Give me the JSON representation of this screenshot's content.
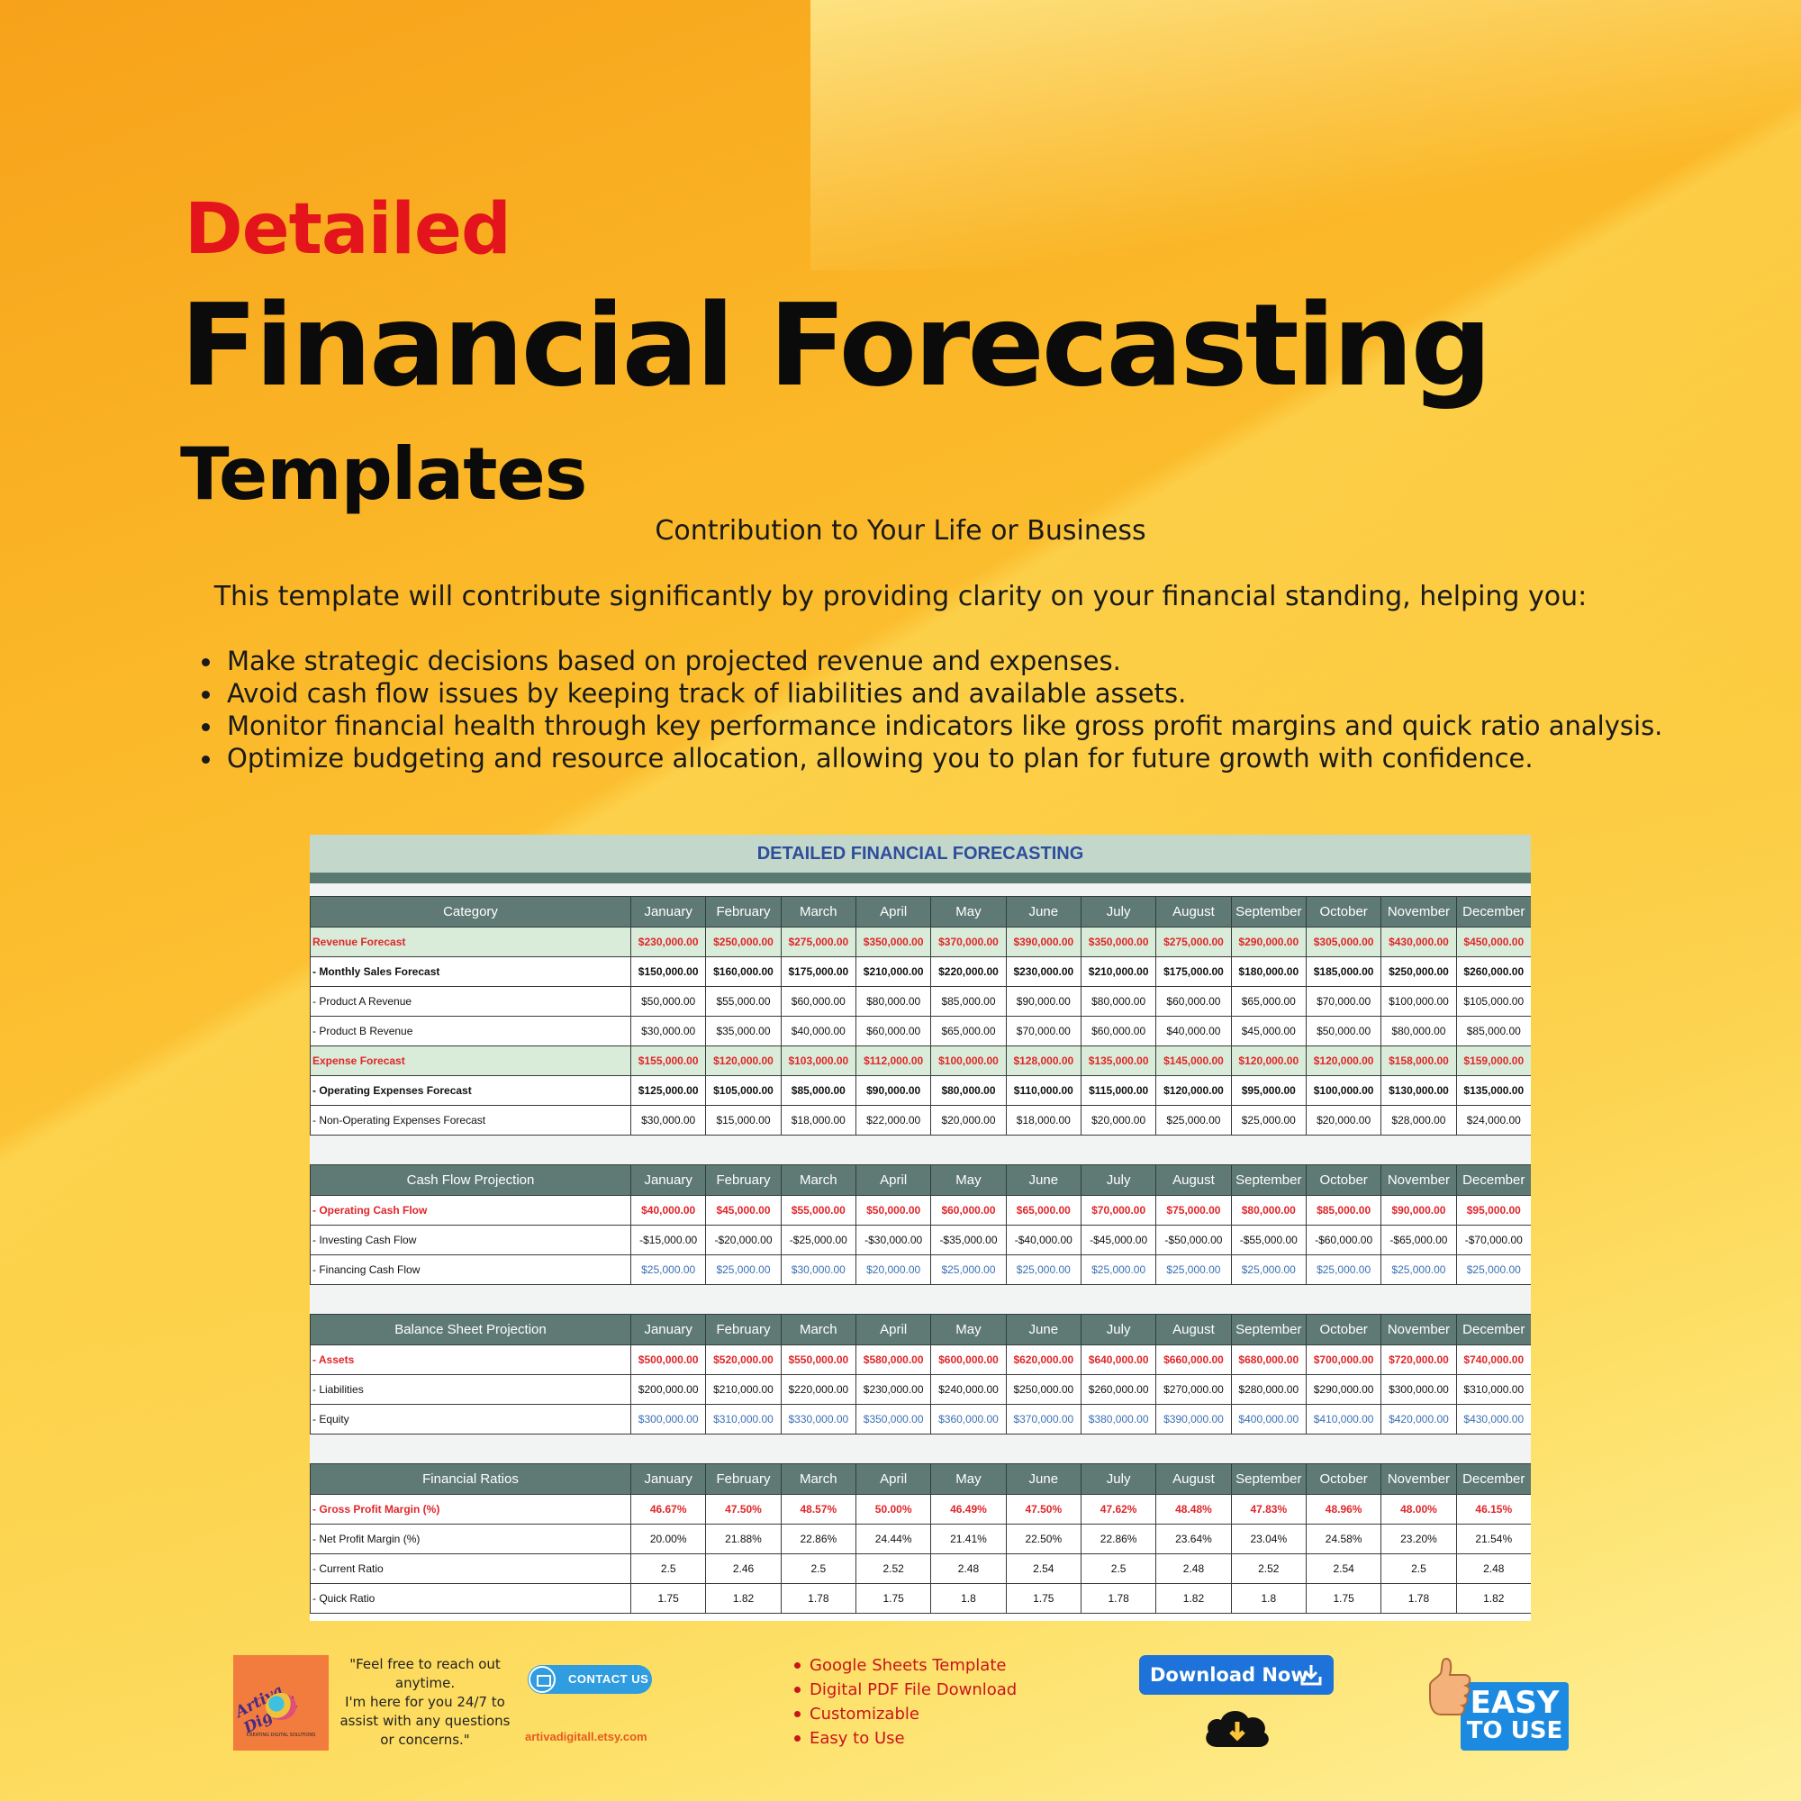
{
  "header": {
    "detailed": "Detailed",
    "title": "Financial Forecasting",
    "subtitle": "Templates",
    "contribution": "Contribution to Your Life or Business",
    "intro": "This template will contribute significantly by providing clarity on your financial standing, helping you:",
    "bullets": [
      "Make strategic decisions based on projected revenue and expenses.",
      "Avoid cash flow issues by keeping track of liabilities and available assets.",
      "Monitor financial health through key performance indicators like gross profit margins and quick ratio analysis.",
      "Optimize budgeting and resource allocation, allowing you to plan for future growth with confidence."
    ]
  },
  "sheet": {
    "title": "DETAILED FINANCIAL FORECASTING",
    "months": [
      "January",
      "February",
      "March",
      "April",
      "May",
      "June",
      "July",
      "August",
      "September",
      "October",
      "November",
      "December"
    ],
    "sections": [
      {
        "header": "Category",
        "rows": [
          {
            "style": "hl",
            "label": "Revenue Forecast",
            "values": [
              "$230,000.00",
              "$250,000.00",
              "$275,000.00",
              "$350,000.00",
              "$370,000.00",
              "$390,000.00",
              "$350,000.00",
              "$275,000.00",
              "$290,000.00",
              "$305,000.00",
              "$430,000.00",
              "$450,000.00"
            ]
          },
          {
            "style": "bold",
            "label": "- Monthly Sales Forecast",
            "values": [
              "$150,000.00",
              "$160,000.00",
              "$175,000.00",
              "$210,000.00",
              "$220,000.00",
              "$230,000.00",
              "$210,000.00",
              "$175,000.00",
              "$180,000.00",
              "$185,000.00",
              "$250,000.00",
              "$260,000.00"
            ]
          },
          {
            "style": "",
            "label": "- Product A Revenue",
            "values": [
              "$50,000.00",
              "$55,000.00",
              "$60,000.00",
              "$80,000.00",
              "$85,000.00",
              "$90,000.00",
              "$80,000.00",
              "$60,000.00",
              "$65,000.00",
              "$70,000.00",
              "$100,000.00",
              "$105,000.00"
            ]
          },
          {
            "style": "",
            "label": "- Product B Revenue",
            "values": [
              "$30,000.00",
              "$35,000.00",
              "$40,000.00",
              "$60,000.00",
              "$65,000.00",
              "$70,000.00",
              "$60,000.00",
              "$40,000.00",
              "$45,000.00",
              "$50,000.00",
              "$80,000.00",
              "$85,000.00"
            ]
          },
          {
            "style": "hl",
            "label": "Expense Forecast",
            "values": [
              "$155,000.00",
              "$120,000.00",
              "$103,000.00",
              "$112,000.00",
              "$100,000.00",
              "$128,000.00",
              "$135,000.00",
              "$145,000.00",
              "$120,000.00",
              "$120,000.00",
              "$158,000.00",
              "$159,000.00"
            ]
          },
          {
            "style": "bold",
            "label": "- Operating Expenses Forecast",
            "values": [
              "$125,000.00",
              "$105,000.00",
              "$85,000.00",
              "$90,000.00",
              "$80,000.00",
              "$110,000.00",
              "$115,000.00",
              "$120,000.00",
              "$95,000.00",
              "$100,000.00",
              "$130,000.00",
              "$135,000.00"
            ]
          },
          {
            "style": "",
            "label": "- Non-Operating Expenses Forecast",
            "values": [
              "$30,000.00",
              "$15,000.00",
              "$18,000.00",
              "$22,000.00",
              "$20,000.00",
              "$18,000.00",
              "$20,000.00",
              "$25,000.00",
              "$25,000.00",
              "$20,000.00",
              "$28,000.00",
              "$24,000.00"
            ]
          }
        ]
      },
      {
        "header": "Cash Flow Projection",
        "rows": [
          {
            "style": "red",
            "label": "- Operating Cash Flow",
            "values": [
              "$40,000.00",
              "$45,000.00",
              "$55,000.00",
              "$50,000.00",
              "$60,000.00",
              "$65,000.00",
              "$70,000.00",
              "$75,000.00",
              "$80,000.00",
              "$85,000.00",
              "$90,000.00",
              "$95,000.00"
            ]
          },
          {
            "style": "",
            "label": "- Investing Cash Flow",
            "values": [
              "-$15,000.00",
              "-$20,000.00",
              "-$25,000.00",
              "-$30,000.00",
              "-$35,000.00",
              "-$40,000.00",
              "-$45,000.00",
              "-$50,000.00",
              "-$55,000.00",
              "-$60,000.00",
              "-$65,000.00",
              "-$70,000.00"
            ]
          },
          {
            "style": "blue",
            "label": "- Financing Cash Flow",
            "values": [
              "$25,000.00",
              "$25,000.00",
              "$30,000.00",
              "$20,000.00",
              "$25,000.00",
              "$25,000.00",
              "$25,000.00",
              "$25,000.00",
              "$25,000.00",
              "$25,000.00",
              "$25,000.00",
              "$25,000.00"
            ]
          }
        ]
      },
      {
        "header": "Balance Sheet Projection",
        "rows": [
          {
            "style": "red",
            "label": "- Assets",
            "values": [
              "$500,000.00",
              "$520,000.00",
              "$550,000.00",
              "$580,000.00",
              "$600,000.00",
              "$620,000.00",
              "$640,000.00",
              "$660,000.00",
              "$680,000.00",
              "$700,000.00",
              "$720,000.00",
              "$740,000.00"
            ]
          },
          {
            "style": "",
            "label": "- Liabilities",
            "values": [
              "$200,000.00",
              "$210,000.00",
              "$220,000.00",
              "$230,000.00",
              "$240,000.00",
              "$250,000.00",
              "$260,000.00",
              "$270,000.00",
              "$280,000.00",
              "$290,000.00",
              "$300,000.00",
              "$310,000.00"
            ]
          },
          {
            "style": "blue",
            "label": "- Equity",
            "values": [
              "$300,000.00",
              "$310,000.00",
              "$330,000.00",
              "$350,000.00",
              "$360,000.00",
              "$370,000.00",
              "$380,000.00",
              "$390,000.00",
              "$400,000.00",
              "$410,000.00",
              "$420,000.00",
              "$430,000.00"
            ]
          }
        ]
      },
      {
        "header": "Financial Ratios",
        "rows": [
          {
            "style": "red",
            "label": "- Gross Profit Margin (%)",
            "values": [
              "46.67%",
              "47.50%",
              "48.57%",
              "50.00%",
              "46.49%",
              "47.50%",
              "47.62%",
              "48.48%",
              "47.83%",
              "48.96%",
              "48.00%",
              "46.15%"
            ]
          },
          {
            "style": "",
            "label": "- Net Profit Margin (%)",
            "values": [
              "20.00%",
              "21.88%",
              "22.86%",
              "24.44%",
              "21.41%",
              "22.50%",
              "22.86%",
              "23.64%",
              "23.04%",
              "24.58%",
              "23.20%",
              "21.54%"
            ]
          },
          {
            "style": "",
            "label": "- Current Ratio",
            "values": [
              "2.5",
              "2.46",
              "2.5",
              "2.52",
              "2.48",
              "2.54",
              "2.5",
              "2.48",
              "2.52",
              "2.54",
              "2.5",
              "2.48"
            ]
          },
          {
            "style": "",
            "label": "- Quick Ratio",
            "values": [
              "1.75",
              "1.82",
              "1.78",
              "1.75",
              "1.8",
              "1.75",
              "1.78",
              "1.82",
              "1.8",
              "1.75",
              "1.78",
              "1.82"
            ]
          }
        ]
      }
    ]
  },
  "footer": {
    "logo_name": "Artiva Digital",
    "logo_tag": "CREATING DIGITAL SOLUTIONS",
    "quote_lines": [
      "\"Feel free to reach out",
      "anytime.",
      "I'm here for you 24/7 to",
      "assist with any questions",
      "or concerns.\""
    ],
    "contact_label": "CONTACT US",
    "etsy_url": "artivadigitall.etsy.com",
    "features": [
      "Google Sheets Template",
      "Digital PDF File Download",
      "Customizable",
      "Easy to Use"
    ],
    "download_label": "Download Now",
    "easy_line1": "EASY",
    "easy_line2": "TO USE"
  },
  "colors": {
    "accent_red": "#e3141b",
    "sheet_header": "#5f7a74",
    "sheet_title_bg": "#c3d8cb",
    "sheet_title_text": "#2e4d9c",
    "highlight_row": "#d9ecd9",
    "button_blue": "#1d73d9"
  }
}
